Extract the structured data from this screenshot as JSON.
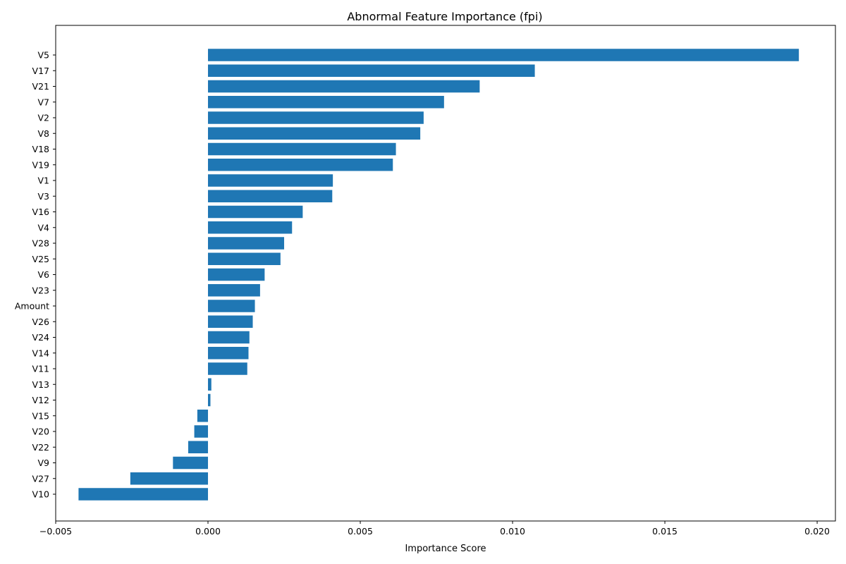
{
  "chart_data": {
    "type": "bar",
    "orientation": "horizontal",
    "title": "Abnormal Feature Importance (fpi)",
    "xlabel": "Importance Score",
    "ylabel": "",
    "xlim": [
      -0.005,
      0.0206
    ],
    "xticks": [
      -0.005,
      0.0,
      0.005,
      0.01,
      0.015,
      0.02
    ],
    "xtick_labels": [
      "−0.005",
      "0.000",
      "0.005",
      "0.010",
      "0.015",
      "0.020"
    ],
    "grid": false,
    "bar_color": "#1f77b4",
    "categories": [
      "V5",
      "V17",
      "V21",
      "V7",
      "V2",
      "V8",
      "V18",
      "V19",
      "V1",
      "V3",
      "V16",
      "V4",
      "V28",
      "V25",
      "V6",
      "V23",
      "Amount",
      "V26",
      "V24",
      "V14",
      "V11",
      "V13",
      "V12",
      "V15",
      "V20",
      "V22",
      "V9",
      "V27",
      "V10"
    ],
    "values": [
      0.0194,
      0.01073,
      0.00892,
      0.00775,
      0.00708,
      0.00697,
      0.00617,
      0.00607,
      0.0041,
      0.00408,
      0.00311,
      0.00276,
      0.0025,
      0.00238,
      0.00186,
      0.00171,
      0.00154,
      0.00147,
      0.00136,
      0.00133,
      0.00129,
      0.00011,
      8e-05,
      -0.00035,
      -0.00045,
      -0.00065,
      -0.00115,
      -0.00255,
      -0.00425
    ]
  }
}
